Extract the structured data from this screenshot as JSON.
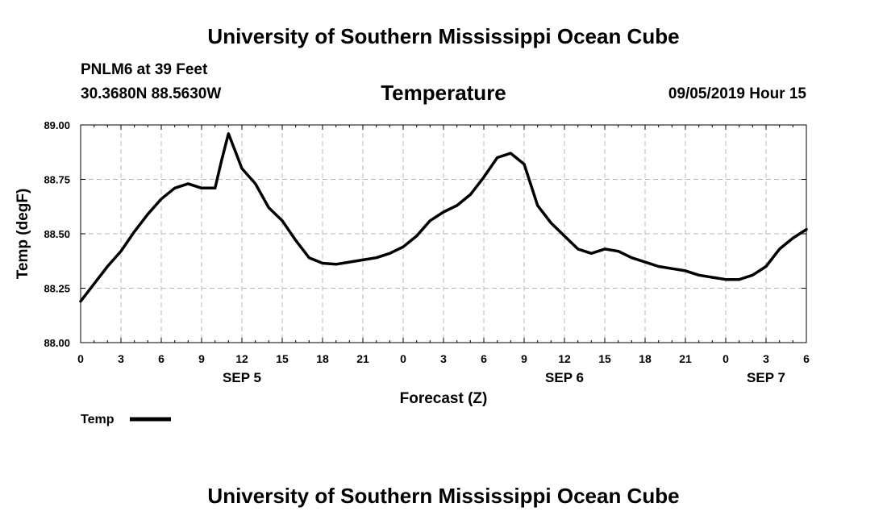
{
  "header": {
    "title": "University of Southern Mississippi Ocean Cube",
    "station": "PNLM6 at 39 Feet",
    "coords": "30.3680N 88.5630W",
    "datetime": "09/05/2019 Hour 15"
  },
  "footer": {
    "title": "University of Southern Mississippi Ocean Cube"
  },
  "chart_data": {
    "type": "line",
    "title": "Temperature",
    "xlabel": "Forecast (Z)",
    "ylabel": "Temp (degF)",
    "xlim": [
      0,
      54
    ],
    "ylim": [
      88.0,
      89.0
    ],
    "x_ticks": [
      0,
      3,
      6,
      9,
      12,
      15,
      18,
      21,
      24,
      27,
      30,
      33,
      36,
      39,
      42,
      45,
      48,
      51,
      54
    ],
    "x_tick_labels": [
      "0",
      "3",
      "6",
      "9",
      "12",
      "15",
      "18",
      "21",
      "0",
      "3",
      "6",
      "9",
      "12",
      "15",
      "18",
      "21",
      "0",
      "3",
      "6"
    ],
    "y_ticks": [
      88.0,
      88.25,
      88.5,
      88.75,
      89.0
    ],
    "y_tick_labels": [
      "88.00",
      "88.25",
      "88.50",
      "88.75",
      "89.00"
    ],
    "day_labels": [
      {
        "x": 12,
        "label": "SEP 5"
      },
      {
        "x": 36,
        "label": "SEP 6"
      },
      {
        "x": 51,
        "label": "SEP 7"
      }
    ],
    "grid": true,
    "legend_position": "bottom-left",
    "series": [
      {
        "name": "Temp",
        "color": "#000000",
        "x": [
          0,
          1,
          2,
          3,
          4,
          5,
          6,
          7,
          8,
          9,
          9.5,
          10,
          10.5,
          11,
          11.5,
          12,
          13,
          14,
          15,
          16,
          17,
          18,
          19,
          20,
          21,
          22,
          23,
          24,
          25,
          26,
          27,
          28,
          29,
          30,
          31,
          32,
          33,
          34,
          35,
          36,
          37,
          38,
          39,
          40,
          41,
          42,
          43,
          44,
          45,
          46,
          47,
          48,
          49,
          50,
          51,
          52,
          53,
          54
        ],
        "y": [
          88.19,
          88.27,
          88.35,
          88.42,
          88.51,
          88.59,
          88.66,
          88.71,
          88.73,
          88.71,
          88.71,
          88.71,
          88.84,
          88.96,
          88.88,
          88.8,
          88.73,
          88.62,
          88.56,
          88.47,
          88.39,
          88.365,
          88.36,
          88.37,
          88.38,
          88.39,
          88.41,
          88.44,
          88.49,
          88.56,
          88.6,
          88.63,
          88.68,
          88.76,
          88.85,
          88.87,
          88.82,
          88.63,
          88.55,
          88.49,
          88.43,
          88.41,
          88.43,
          88.42,
          88.39,
          88.37,
          88.35,
          88.34,
          88.33,
          88.31,
          88.3,
          88.29,
          88.29,
          88.31,
          88.35,
          88.43,
          88.48,
          88.52
        ]
      }
    ]
  }
}
